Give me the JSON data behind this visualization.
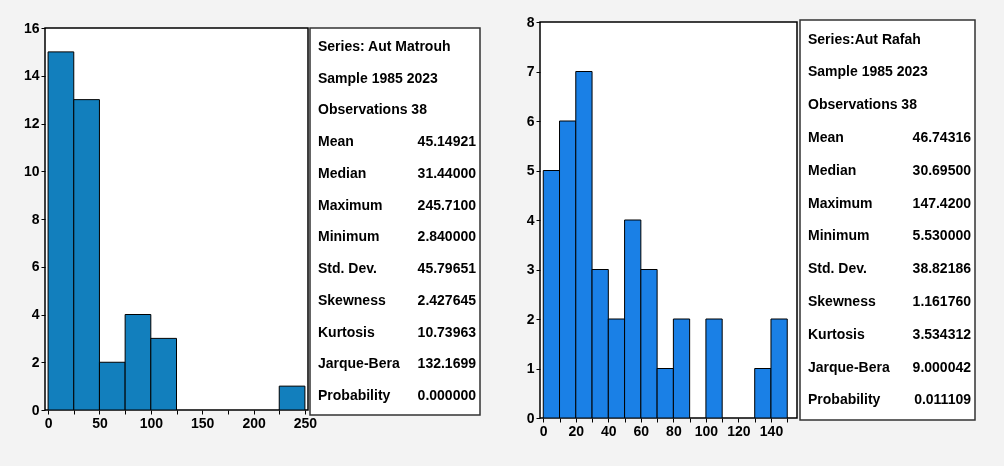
{
  "chart_data": [
    {
      "type": "histogram",
      "bins": [
        0,
        25,
        50,
        75,
        100,
        125,
        150,
        175,
        200,
        225,
        250
      ],
      "values": [
        15,
        13,
        2,
        4,
        3,
        0,
        0,
        0,
        0,
        1
      ],
      "color": "#127fbd",
      "xlim": [
        -3,
        253
      ],
      "xticks": [
        0,
        {
          "value": 25,
          "label": null
        },
        50,
        {
          "value": 75,
          "label": null
        },
        100,
        {
          "value": 125,
          "label": null
        },
        150,
        {
          "value": 175,
          "label": null
        },
        200,
        {
          "value": 225,
          "label": null
        },
        250
      ],
      "ylim": [
        0,
        16
      ],
      "yticks": [
        0,
        2,
        4,
        6,
        8,
        10,
        12,
        14,
        16
      ],
      "grid": false
    },
    {
      "type": "other",
      "title": "Series: Aut Matrouh",
      "annotations": [
        "Sample 1985 2023",
        "Observations 38"
      ],
      "categories": [
        "Mean",
        "Median",
        "Maximum",
        "Minimum",
        "Std. Dev.",
        "Skewness",
        "Kurtosis",
        "Jarque-Bera",
        "Probability"
      ],
      "value_labels": [
        "45.14921",
        "31.44000",
        "245.7100",
        "2.840000",
        "45.79651",
        "2.427645",
        "10.73963",
        "132.1699",
        "0.000000"
      ]
    },
    {
      "type": "histogram",
      "bins": [
        0,
        10,
        20,
        30,
        40,
        50,
        60,
        70,
        80,
        90,
        100,
        110,
        120,
        130,
        140,
        150
      ],
      "values": [
        5,
        6,
        7,
        3,
        2,
        4,
        3,
        1,
        2,
        0,
        2,
        0,
        0,
        1,
        2
      ],
      "color": "#1a80e6",
      "xlim": [
        -2,
        156
      ],
      "xticks": [
        0,
        {
          "value": 10,
          "label": null
        },
        20,
        {
          "value": 30,
          "label": null
        },
        40,
        {
          "value": 50,
          "label": null
        },
        60,
        {
          "value": 70,
          "label": null
        },
        80,
        {
          "value": 90,
          "label": null
        },
        100,
        {
          "value": 110,
          "label": null
        },
        120,
        {
          "value": 130,
          "label": null
        },
        140,
        {
          "value": 150,
          "label": null
        }
      ],
      "ylim": [
        0,
        8
      ],
      "yticks": [
        0,
        1,
        2,
        3,
        4,
        5,
        6,
        7,
        8
      ],
      "grid": false
    },
    {
      "type": "other",
      "title": "Series:Aut  Rafah",
      "annotations": [
        "Sample 1985 2023",
        "Observations 38"
      ],
      "categories": [
        "Mean",
        "Median",
        "Maximum",
        "Minimum",
        "Std. Dev.",
        "Skewness",
        "Kurtosis",
        "Jarque-Bera",
        "Probability"
      ],
      "value_labels": [
        "46.74316",
        "30.69500",
        "147.4200",
        "5.530000",
        "38.82186",
        "1.161760",
        "3.534312",
        "9.000042",
        "0.011109"
      ]
    }
  ]
}
